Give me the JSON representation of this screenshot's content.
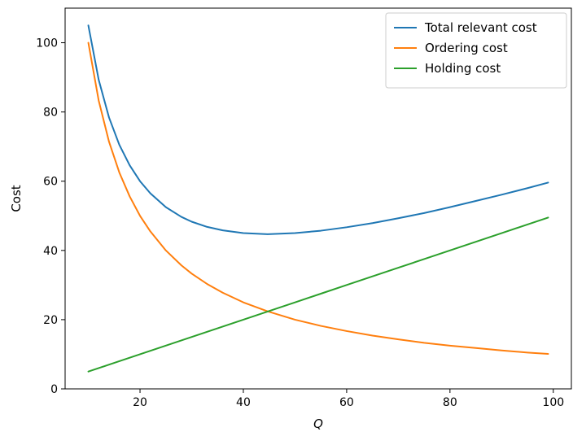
{
  "chart_data": {
    "type": "line",
    "xlabel": "Q",
    "ylabel": "Cost",
    "xlim": [
      5.5,
      103.5
    ],
    "ylim": [
      0,
      110
    ],
    "xticks": [
      20,
      40,
      60,
      80,
      100
    ],
    "yticks": [
      0,
      20,
      40,
      60,
      80,
      100
    ],
    "grid": false,
    "legend_position": "top-right",
    "x": [
      10,
      12,
      14,
      16,
      18,
      20,
      22,
      25,
      28,
      30,
      33,
      36,
      40,
      44.7,
      50,
      55,
      60,
      65,
      70,
      75,
      80,
      85,
      90,
      95,
      99
    ],
    "series": [
      {
        "name": "Total relevant cost",
        "color": "#1f77b4",
        "values": [
          105,
          89.3,
          78.4,
          70.5,
          64.6,
          60,
          56.5,
          52.5,
          49.7,
          48.3,
          46.8,
          45.8,
          45,
          44.7,
          45,
          45.7,
          46.7,
          47.9,
          49.3,
          50.8,
          52.5,
          54.3,
          56.1,
          58.0,
          59.6
        ]
      },
      {
        "name": "Ordering cost",
        "color": "#ff7f0e",
        "values": [
          100,
          83.3,
          71.4,
          62.5,
          55.6,
          50,
          45.5,
          40,
          35.7,
          33.3,
          30.3,
          27.8,
          25,
          22.4,
          20,
          18.2,
          16.7,
          15.4,
          14.3,
          13.3,
          12.5,
          11.8,
          11.1,
          10.5,
          10.1
        ]
      },
      {
        "name": "Holding cost",
        "color": "#2ca02c",
        "values": [
          5,
          6,
          7,
          8,
          9,
          10,
          11,
          12.5,
          14,
          15,
          16.5,
          18,
          20,
          22.35,
          25,
          27.5,
          30,
          32.5,
          35,
          37.5,
          40,
          42.5,
          45,
          47.5,
          49.5
        ]
      }
    ]
  }
}
